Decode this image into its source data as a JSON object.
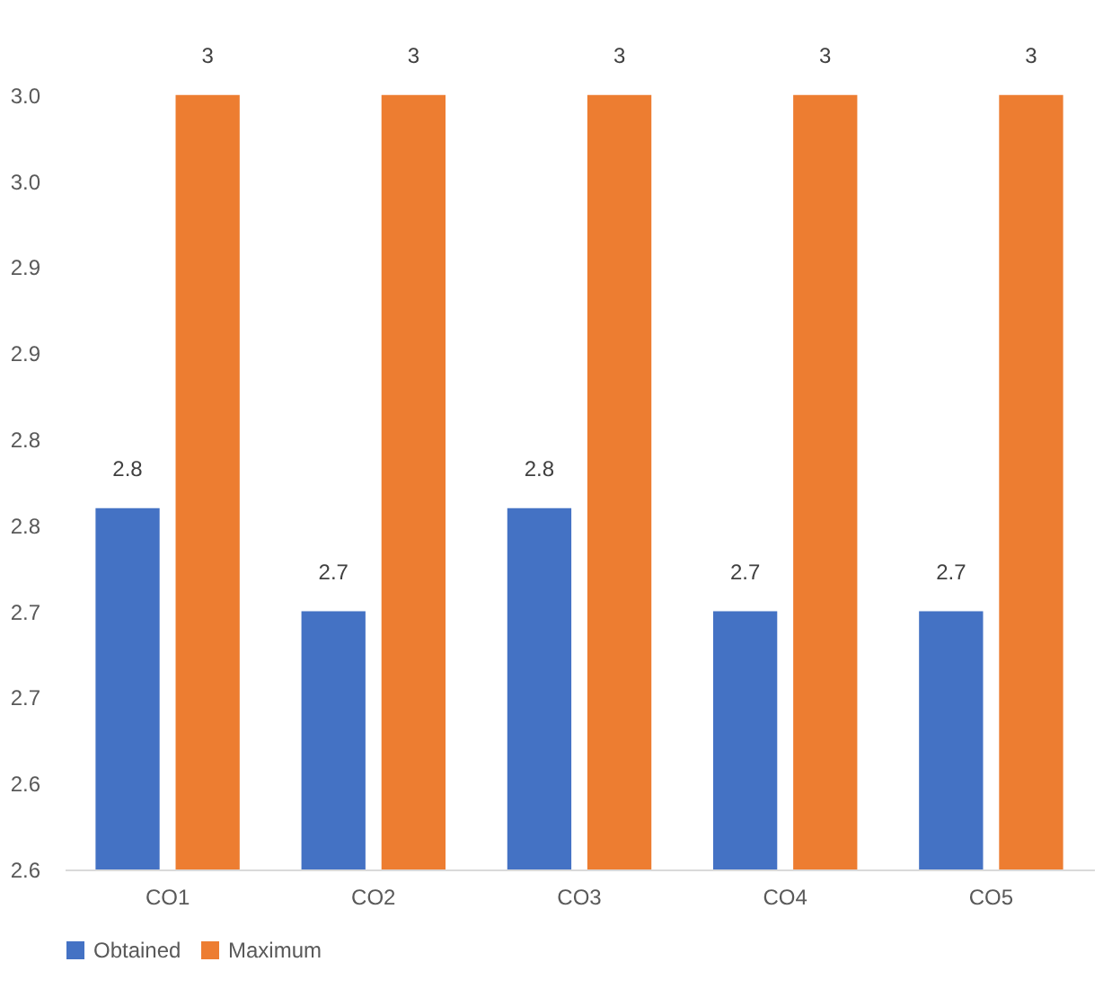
{
  "chart_data": {
    "type": "bar",
    "categories": [
      "CO1",
      "CO2",
      "CO3",
      "CO4",
      "CO5"
    ],
    "series": [
      {
        "name": "Obtained",
        "color": "#4472c4",
        "values": [
          2.76,
          2.7,
          2.76,
          2.7,
          2.7
        ],
        "value_labels": [
          "2.8",
          "2.7",
          "2.8",
          "2.7",
          "2.7"
        ]
      },
      {
        "name": "Maximum",
        "color": "#ed7d31",
        "values": [
          3,
          3,
          3,
          3,
          3
        ],
        "value_labels": [
          "3",
          "3",
          "3",
          "3",
          "3"
        ]
      }
    ],
    "ylim": [
      2.55,
      3.05
    ],
    "yticks": [
      {
        "value": 2.55,
        "label": "2.6"
      },
      2.6,
      {
        "value": 2.65,
        "label": "2.7"
      },
      2.7,
      {
        "value": 2.75,
        "label": "2.8"
      },
      2.8,
      {
        "value": 2.85,
        "label": "2.9"
      },
      2.9,
      {
        "value": 2.95,
        "label": "3.0"
      },
      {
        "value": 3.0,
        "label": "3.0"
      }
    ],
    "grid": false,
    "legend": "bottom"
  }
}
